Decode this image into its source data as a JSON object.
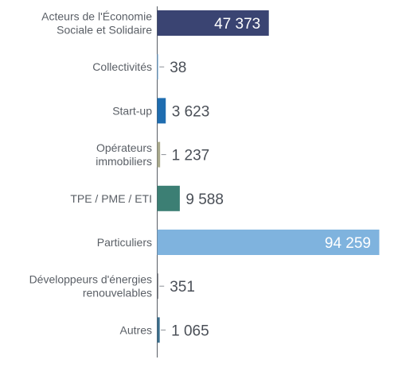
{
  "chart_data": {
    "type": "bar",
    "orientation": "horizontal",
    "title": "",
    "xlabel": "",
    "ylabel": "",
    "grid": false,
    "legend": "none",
    "categories": [
      [
        "Acteurs de l'Économie",
        "Sociale et Solidaire"
      ],
      [
        "Collectivités"
      ],
      [
        "Start-up"
      ],
      [
        "Opérateurs",
        "immobiliers"
      ],
      [
        "TPE / PME / ETI"
      ],
      [
        "Particuliers"
      ],
      [
        "Développeurs d'énergies",
        "renouvelables"
      ],
      [
        "Autres"
      ]
    ],
    "values": [
      47373,
      38,
      3623,
      1237,
      9588,
      94259,
      351,
      1065
    ],
    "value_labels": [
      "47 373",
      "38",
      "3 623",
      "1 237",
      "9 588",
      "94 259",
      "351",
      "1 065"
    ],
    "colors": [
      "#3a4472",
      "#7fb3de",
      "#1f6db0",
      "#a9a98c",
      "#3c7f74",
      "#7fb3de",
      "#5c5f66",
      "#3a6e8c"
    ],
    "label_inside": [
      true,
      false,
      false,
      false,
      false,
      true,
      false,
      false
    ],
    "xlim": [
      0,
      94259
    ]
  }
}
